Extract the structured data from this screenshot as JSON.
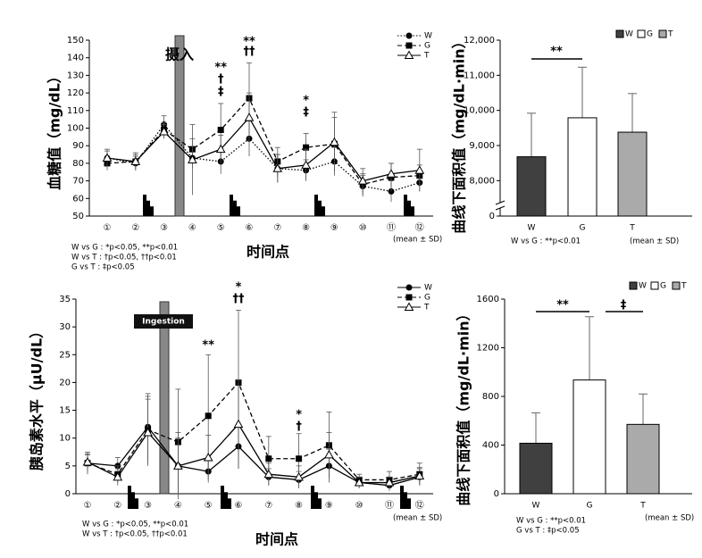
{
  "chart_data": [
    {
      "type": "line",
      "y_label": "血糖值（mg/dL）",
      "x_label": "时间点",
      "ingestion_label": "摄入",
      "ingestion_style": "plain",
      "categories": [
        "①",
        "②",
        "③",
        "④",
        "⑤",
        "⑥",
        "⑦",
        "⑧",
        "⑨",
        "⑩",
        "⑪",
        "⑫"
      ],
      "ylim": [
        50,
        150
      ],
      "yticks": [
        50,
        60,
        70,
        80,
        90,
        100,
        110,
        120,
        130,
        140,
        150
      ],
      "legend": "top-right",
      "series": [
        {
          "name": "W",
          "color": "#000000",
          "dash": "dotted",
          "marker": "circle",
          "values": [
            83,
            80,
            102,
            83,
            81,
            94,
            77,
            76,
            81,
            67,
            64,
            69
          ],
          "errors": [
            4,
            4,
            5,
            6,
            7,
            10,
            8,
            6,
            8,
            6,
            6,
            5
          ]
        },
        {
          "name": "G",
          "color": "#000000",
          "dash": "dashed",
          "marker": "square",
          "values": [
            80,
            81,
            99,
            88,
            99,
            117,
            81,
            89,
            91,
            68,
            72,
            73
          ],
          "errors": [
            4,
            5,
            4,
            6,
            15,
            20,
            8,
            8,
            15,
            6,
            8,
            6
          ]
        },
        {
          "name": "T",
          "color": "#000000",
          "dash": "solid",
          "marker": "triangle",
          "values": [
            83,
            81,
            98,
            82,
            88,
            106,
            77,
            79,
            92,
            70,
            74,
            76
          ],
          "errors": [
            5,
            4,
            4,
            20,
            8,
            14,
            8,
            9,
            17,
            7,
            6,
            12
          ]
        }
      ],
      "annotations": [
        "**",
        "†",
        "‡",
        "**",
        "††",
        "*",
        "‡"
      ],
      "notes": [
        "W vs G : *p<0.05, **p<0.01",
        "W vs T : †p<0.05, ††p<0.01",
        "G vs T : ‡p<0.05"
      ],
      "mean_note": "(mean ± SD)"
    },
    {
      "type": "bar",
      "y_label": "曲线下面积值（mg/dL·min）",
      "categories": [
        "W",
        "G",
        "T"
      ],
      "colors": [
        "#404040",
        "#ffffff",
        "#aaaaaa"
      ],
      "values": [
        8680,
        9790,
        9380
      ],
      "errors": [
        1240,
        1440,
        1100
      ],
      "ylim": [
        0,
        12000
      ],
      "ybreak": [
        0,
        7500
      ],
      "yticks": [
        0,
        {
          "value": 8000,
          "label": "8,000"
        },
        {
          "value": 9000,
          "label": "9,000"
        },
        {
          "value": 10000,
          "label": "10,000"
        },
        {
          "value": 11000,
          "label": "11,000"
        },
        {
          "value": 12000,
          "label": "12,000"
        }
      ],
      "legend": "top-right",
      "annotations": [
        "**"
      ],
      "notes": [
        "W vs G : **p<0.01"
      ],
      "mean_note": "(mean ± SD)"
    },
    {
      "type": "line",
      "y_label": "胰岛素水平（μU/dL）",
      "x_label": "时间点",
      "ingestion_label": "Ingestion",
      "ingestion_style": "boxed",
      "categories": [
        "①",
        "②",
        "③",
        "④",
        "⑤",
        "⑥",
        "⑦",
        "⑧",
        "⑨",
        "⑩",
        "⑪",
        "⑫"
      ],
      "ylim": [
        0,
        35
      ],
      "yticks": [
        0,
        5,
        10,
        15,
        20,
        25,
        30,
        35
      ],
      "legend": "top-right",
      "series": [
        {
          "name": "W",
          "color": "#000000",
          "dash": "solid",
          "marker": "circle",
          "values": [
            5.5,
            5,
            12,
            5,
            4,
            8.5,
            3,
            2.5,
            5,
            2,
            1.5,
            3
          ],
          "errors": [
            1.5,
            1.5,
            6,
            5,
            2,
            4,
            1.5,
            1.5,
            3,
            1,
            1,
            1.5
          ]
        },
        {
          "name": "G",
          "color": "#000000",
          "dash": "dashed",
          "marker": "square",
          "values": [
            5.5,
            3.5,
            11.5,
            9.3,
            14,
            20,
            6.3,
            6.3,
            8.7,
            2.5,
            2.5,
            3.5
          ],
          "errors": [
            2,
            1.5,
            6,
            9.5,
            11,
            13,
            4,
            4.5,
            6,
            1,
            1.5,
            2
          ]
        },
        {
          "name": "T",
          "color": "#000000",
          "dash": "solid",
          "marker": "triangle",
          "values": [
            5.7,
            3,
            11,
            5,
            6.5,
            12.5,
            3.5,
            3,
            7,
            2,
            2,
            3.2
          ],
          "errors": [
            1.5,
            1.5,
            6,
            6,
            4,
            8,
            2,
            2,
            4,
            1,
            1,
            1.5
          ]
        }
      ],
      "annotations": [
        "**",
        "*",
        "††",
        "*",
        "†"
      ],
      "notes": [
        "W vs G : *p<0.05, **p<0.01",
        "W vs T : †p<0.05, ††p<0.01"
      ],
      "mean_note": "(mean ± SD)"
    },
    {
      "type": "bar",
      "y_label": "曲线下面积值（mg/dL·min）",
      "categories": [
        "W",
        "G",
        "T"
      ],
      "colors": [
        "#404040",
        "#ffffff",
        "#aaaaaa"
      ],
      "values": [
        415,
        935,
        570
      ],
      "errors": [
        250,
        520,
        250
      ],
      "ylim": [
        0,
        1600
      ],
      "yticks": [
        0,
        400,
        800,
        1200,
        1600
      ],
      "legend": "top-right",
      "annotations": [
        "**",
        "‡"
      ],
      "notes": [
        "W vs G : **p<0.01",
        "G vs T : ‡p<0.05"
      ],
      "mean_note": "(mean ± SD)"
    }
  ]
}
